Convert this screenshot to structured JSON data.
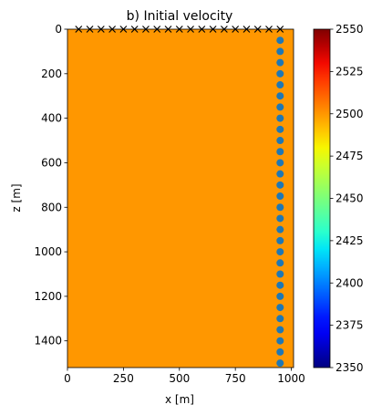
{
  "chart_data": {
    "type": "image",
    "title": "b) Initial velocity",
    "x_label": "x [m]",
    "y_label": "z [m]",
    "value": 2500,
    "cmap": "jet",
    "xlim": [
      0,
      1010
    ],
    "ylim": [
      1520,
      0
    ],
    "xticks": [
      0,
      250,
      500,
      750,
      1000
    ],
    "yticks": [
      0,
      200,
      400,
      600,
      800,
      1000,
      1200,
      1400
    ],
    "colorbar": {
      "lim": [
        2350,
        2550
      ],
      "ticks": [
        2350,
        2375,
        2400,
        2425,
        2450,
        2475,
        2500,
        2525,
        2550
      ]
    },
    "sources": {
      "marker": "x",
      "color": "#000000",
      "x": [
        50,
        100,
        150,
        200,
        250,
        300,
        350,
        400,
        450,
        500,
        550,
        600,
        650,
        700,
        750,
        800,
        850,
        900,
        950
      ],
      "z": [
        0,
        0,
        0,
        0,
        0,
        0,
        0,
        0,
        0,
        0,
        0,
        0,
        0,
        0,
        0,
        0,
        0,
        0,
        0
      ]
    },
    "receivers": {
      "marker": "o",
      "color": "#1f77b4",
      "x": [
        950,
        950,
        950,
        950,
        950,
        950,
        950,
        950,
        950,
        950,
        950,
        950,
        950,
        950,
        950,
        950,
        950,
        950,
        950,
        950,
        950,
        950,
        950,
        950,
        950,
        950,
        950,
        950,
        950,
        950
      ],
      "z": [
        50,
        100,
        150,
        200,
        250,
        300,
        350,
        400,
        450,
        500,
        550,
        600,
        650,
        700,
        750,
        800,
        850,
        900,
        950,
        1000,
        1050,
        1100,
        1150,
        1200,
        1250,
        1300,
        1350,
        1400,
        1450,
        1500
      ]
    }
  }
}
